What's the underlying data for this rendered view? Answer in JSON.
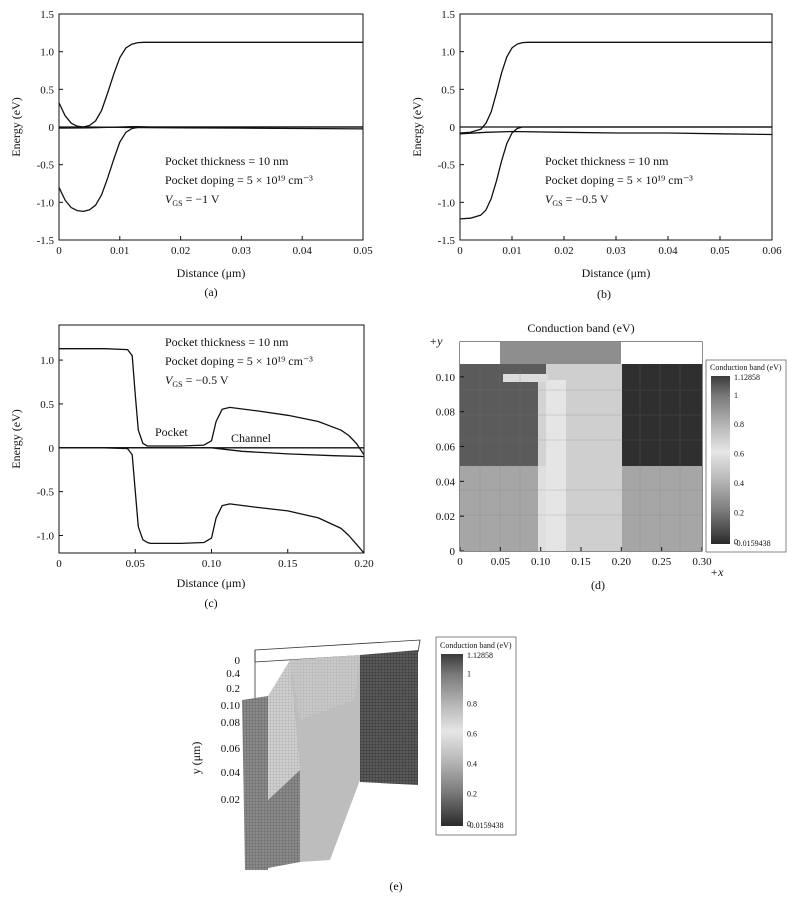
{
  "chart_data": [
    {
      "panel": "a",
      "type": "line",
      "caption": "(a)",
      "xlabel": "Distance (μm)",
      "ylabel": "Energy (eV)",
      "xlim": [
        0,
        0.05
      ],
      "ylim": [
        -1.5,
        1.5
      ],
      "xticks": [
        "0",
        "0.01",
        "0.02",
        "0.03",
        "0.04",
        "0.05"
      ],
      "yticks": [
        "1.5",
        "1.0",
        "0.5",
        "0",
        "-0.5",
        "-1.0",
        "-1.5"
      ],
      "annotations": [
        "Pocket thickness = 10 nm",
        "Pocket doping = 5 × 10¹⁹ cm⁻³",
        "V",
        "GS",
        " = −1 V"
      ],
      "series": [
        {
          "x": [
            0,
            0.001,
            0.002,
            0.003,
            0.004,
            0.005,
            0.006,
            0.007,
            0.008,
            0.009,
            0.01,
            0.011,
            0.012,
            0.013,
            0.014,
            0.016,
            0.02,
            0.03,
            0.04,
            0.05
          ],
          "values": [
            0.32,
            0.15,
            0.05,
            0.01,
            0.0,
            0.02,
            0.08,
            0.22,
            0.45,
            0.7,
            0.92,
            1.05,
            1.1,
            1.12,
            1.125,
            1.125,
            1.125,
            1.125,
            1.125,
            1.125
          ]
        },
        {
          "x": [
            0,
            0.005,
            0.01,
            0.02,
            0.03,
            0.04,
            0.05
          ],
          "values": [
            0.0,
            0.0,
            -0.005,
            -0.01,
            -0.015,
            -0.02,
            -0.025
          ]
        },
        {
          "x": [
            0,
            0.005,
            0.01,
            0.012,
            0.013,
            0.015,
            0.02,
            0.03,
            0.04,
            0.05
          ],
          "values": [
            -0.015,
            -0.01,
            0.0,
            0.005,
            0.005,
            0.0,
            0.0,
            0.0,
            0.0,
            0.0
          ]
        },
        {
          "x": [
            0,
            0.001,
            0.002,
            0.003,
            0.004,
            0.005,
            0.006,
            0.007,
            0.008,
            0.009,
            0.01,
            0.011,
            0.012,
            0.013,
            0.014,
            0.016,
            0.02,
            0.03,
            0.04,
            0.05
          ],
          "values": [
            -0.8,
            -0.97,
            -1.07,
            -1.11,
            -1.12,
            -1.1,
            -1.04,
            -0.9,
            -0.68,
            -0.43,
            -0.2,
            -0.07,
            -0.02,
            -0.005,
            0.0,
            0.0,
            0.0,
            0.0,
            0.0,
            0.0
          ]
        }
      ]
    },
    {
      "panel": "b",
      "type": "line",
      "caption": "(b)",
      "xlabel": "Distance (μm)",
      "ylabel": "Energy (eV)",
      "xlim": [
        0,
        0.06
      ],
      "ylim": [
        -1.5,
        1.5
      ],
      "xticks": [
        "0",
        "0.01",
        "0.02",
        "0.03",
        "0.04",
        "0.05",
        "0.06"
      ],
      "yticks": [
        "1.5",
        "1.0",
        "0.5",
        "0",
        "-0.5",
        "-1.0",
        "-1.5"
      ],
      "annotations": [
        "Pocket thickness = 10 nm",
        "Pocket doping = 5 × 10¹⁹ cm⁻³",
        "V",
        "GS",
        " = −0.5 V"
      ],
      "series": [
        {
          "x": [
            0,
            0.002,
            0.004,
            0.005,
            0.006,
            0.007,
            0.008,
            0.009,
            0.01,
            0.011,
            0.012,
            0.013,
            0.015,
            0.02,
            0.03,
            0.04,
            0.05,
            0.06
          ],
          "values": [
            -0.08,
            -0.07,
            -0.03,
            0.05,
            0.2,
            0.45,
            0.72,
            0.93,
            1.05,
            1.1,
            1.12,
            1.125,
            1.125,
            1.125,
            1.125,
            1.125,
            1.125,
            1.125
          ]
        },
        {
          "x": [
            0,
            0.005,
            0.01,
            0.02,
            0.03,
            0.04,
            0.05,
            0.06
          ],
          "values": [
            0.0,
            0.0,
            0.0,
            0.0,
            0.0,
            0.0,
            0.0,
            0.0
          ]
        },
        {
          "x": [
            0,
            0.005,
            0.01,
            0.02,
            0.03,
            0.04,
            0.05,
            0.06
          ],
          "values": [
            -0.09,
            -0.07,
            -0.06,
            -0.07,
            -0.08,
            -0.08,
            -0.09,
            -0.1
          ]
        },
        {
          "x": [
            0,
            0.002,
            0.004,
            0.005,
            0.006,
            0.007,
            0.008,
            0.009,
            0.01,
            0.011,
            0.012,
            0.014,
            0.02,
            0.03,
            0.04,
            0.05,
            0.06
          ],
          "values": [
            -1.22,
            -1.21,
            -1.17,
            -1.1,
            -0.95,
            -0.72,
            -0.45,
            -0.22,
            -0.08,
            -0.02,
            0.0,
            0.0,
            0.0,
            0.0,
            0.0,
            0.0,
            0.0
          ]
        }
      ]
    },
    {
      "panel": "c",
      "type": "line",
      "caption": "(c)",
      "xlabel": "Distance (μm)",
      "ylabel": "Energy (eV)",
      "xlim": [
        0,
        0.2
      ],
      "ylim": [
        -1.2,
        1.4
      ],
      "xticks": [
        "0",
        "0.05",
        "0.10",
        "0.15",
        "0.20"
      ],
      "yticks": [
        "1.0",
        "0.5",
        "0",
        "-0.5",
        "-1.0"
      ],
      "annotations": [
        "Pocket thickness = 10 nm",
        "Pocket doping = 5 × 10¹⁹ cm⁻³",
        "V",
        "GS",
        " = −0.5 V",
        "Pocket",
        "Channel"
      ],
      "series": [
        {
          "x": [
            0,
            0.03,
            0.045,
            0.048,
            0.05,
            0.052,
            0.055,
            0.058,
            0.06,
            0.08,
            0.095,
            0.1,
            0.103,
            0.107,
            0.112,
            0.13,
            0.15,
            0.17,
            0.185,
            0.19,
            0.195,
            0.2
          ],
          "values": [
            1.13,
            1.13,
            1.12,
            1.05,
            0.6,
            0.2,
            0.05,
            0.02,
            0.02,
            0.02,
            0.03,
            0.08,
            0.3,
            0.44,
            0.46,
            0.42,
            0.37,
            0.3,
            0.2,
            0.14,
            0.05,
            -0.08
          ]
        },
        {
          "x": [
            0,
            0.05,
            0.1,
            0.15,
            0.2
          ],
          "values": [
            0.0,
            0.0,
            0.0,
            0.0,
            0.0
          ]
        },
        {
          "x": [
            0,
            0.05,
            0.1,
            0.12,
            0.15,
            0.18,
            0.2
          ],
          "values": [
            0.0,
            0.0,
            0.0,
            -0.04,
            -0.07,
            -0.09,
            -0.1
          ]
        },
        {
          "x": [
            0,
            0.03,
            0.045,
            0.048,
            0.05,
            0.052,
            0.055,
            0.058,
            0.06,
            0.08,
            0.095,
            0.1,
            0.103,
            0.107,
            0.112,
            0.13,
            0.15,
            0.17,
            0.185,
            0.19,
            0.195,
            0.2
          ],
          "values": [
            0.0,
            0.0,
            -0.01,
            -0.08,
            -0.5,
            -0.9,
            -1.05,
            -1.08,
            -1.09,
            -1.09,
            -1.08,
            -1.03,
            -0.8,
            -0.66,
            -0.64,
            -0.68,
            -0.72,
            -0.8,
            -0.92,
            -1.0,
            -1.1,
            -1.2
          ]
        }
      ]
    },
    {
      "panel": "d",
      "type": "heatmap",
      "caption": "(d)",
      "title": "Conduction band (eV)",
      "xlim": [
        0,
        0.3
      ],
      "ylim": [
        0,
        0.12
      ],
      "xticks": [
        "0",
        "0.05",
        "0.10",
        "0.15",
        "0.20",
        "0.25",
        "0.30"
      ],
      "yticks": [
        "0",
        "0.02",
        "0.04",
        "0.06",
        "0.08",
        "0.10"
      ],
      "axis_marks": [
        "+y",
        "+x"
      ],
      "colorbar": {
        "title": "Conduction band (eV)",
        "max": "1.12858",
        "min": "-0.0159438",
        "ticks": [
          "1",
          "0.8",
          "0.6",
          "0.4",
          "0.2",
          "0"
        ]
      }
    },
    {
      "panel": "e",
      "type": "heatmap",
      "caption": "(e)",
      "ylabel": "y (μm)",
      "yticks": [
        "0",
        "0.4",
        "0.2",
        "0.10",
        "0.08",
        "0.06",
        "0.04",
        "0.02"
      ],
      "colorbar": {
        "title": "Conduction band (eV)",
        "max": "1.12858",
        "min": "-0.0159438",
        "ticks": [
          "1",
          "0.8",
          "0.6",
          "0.4",
          "0.2",
          "0"
        ]
      }
    }
  ]
}
